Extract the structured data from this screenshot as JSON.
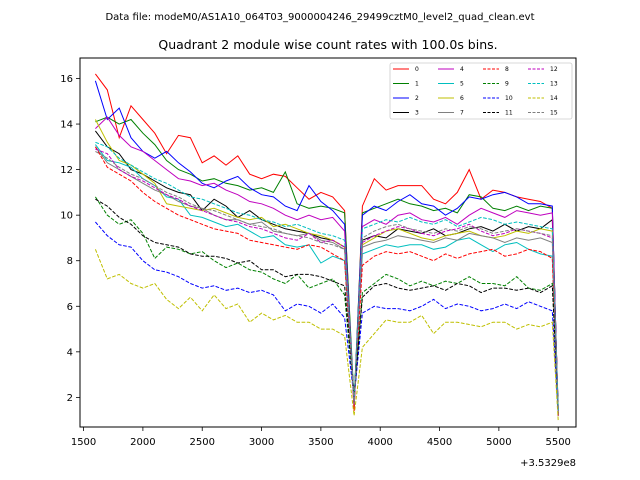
{
  "figure": {
    "suptitle": "Data file: modeM0/AS1A10_064T03_9000004246_29499cztM0_level2_quad_clean.evt",
    "title": "Quadrant 2 module wise count rates with 100.0s bins."
  },
  "chart_data": {
    "type": "line",
    "title": "Quadrant 2 module wise count rates with 100.0s bins.",
    "xlabel": "",
    "ylabel": "",
    "x_offset_label": "+3.5329e8",
    "xlim": [
      1470,
      5650
    ],
    "ylim": [
      0.7,
      16.9
    ],
    "xticks": [
      1500,
      2000,
      2500,
      3000,
      3500,
      4000,
      4500,
      5000,
      5500
    ],
    "xtick_labels": [
      "1500",
      "2000",
      "2500",
      "3000",
      "3500",
      "4000",
      "4500",
      "5000",
      "5500"
    ],
    "yticks": [
      2,
      4,
      6,
      8,
      10,
      12,
      14,
      16
    ],
    "ytick_labels": [
      "2",
      "4",
      "6",
      "8",
      "10",
      "12",
      "14",
      "16"
    ],
    "legend_placement": "top-right",
    "x": [
      1600,
      1700,
      1800,
      1900,
      2000,
      2100,
      2200,
      2300,
      2400,
      2500,
      2600,
      2700,
      2800,
      2900,
      3000,
      3100,
      3200,
      3300,
      3400,
      3500,
      3600,
      3700,
      3780,
      3850,
      3950,
      4050,
      4150,
      4250,
      4350,
      4450,
      4550,
      4650,
      4750,
      4850,
      4950,
      5050,
      5150,
      5250,
      5350,
      5450,
      5500
    ],
    "series": [
      {
        "name": "0",
        "color": "#ff0000",
        "style": "solid",
        "values": [
          16.2,
          15.5,
          13.4,
          14.8,
          14.2,
          13.6,
          12.7,
          13.5,
          13.4,
          12.3,
          12.6,
          12.2,
          12.6,
          11.8,
          11.6,
          11.8,
          11.7,
          11.2,
          10.7,
          11.0,
          10.8,
          10.2,
          1.4,
          10.4,
          11.6,
          11.1,
          11.3,
          11.3,
          11.3,
          10.7,
          10.5,
          11.0,
          12.0,
          10.7,
          11.1,
          11.0,
          10.8,
          10.7,
          10.6,
          10.3,
          1.3
        ]
      },
      {
        "name": "1",
        "color": "#008000",
        "style": "solid",
        "values": [
          14.1,
          14.3,
          14.0,
          14.2,
          13.6,
          13.1,
          12.4,
          12.0,
          11.8,
          11.5,
          11.6,
          11.4,
          11.3,
          11.1,
          11.2,
          11.0,
          11.9,
          10.5,
          10.3,
          10.4,
          10.3,
          10.1,
          1.8,
          10.1,
          10.3,
          10.5,
          10.7,
          10.5,
          10.4,
          10.2,
          10.3,
          10.1,
          10.9,
          10.8,
          10.3,
          10.2,
          10.4,
          10.2,
          10.4,
          10.3,
          1.2
        ]
      },
      {
        "name": "2",
        "color": "#0000ff",
        "style": "solid",
        "values": [
          15.9,
          14.2,
          14.7,
          13.4,
          12.8,
          12.5,
          12.8,
          12.3,
          11.9,
          11.4,
          11.2,
          11.5,
          11.7,
          11.2,
          10.9,
          10.8,
          10.4,
          10.2,
          11.3,
          10.6,
          10.2,
          9.6,
          1.6,
          10.0,
          10.4,
          10.2,
          10.6,
          10.9,
          10.5,
          10.4,
          10.0,
          10.3,
          10.8,
          10.7,
          10.9,
          11.0,
          10.8,
          10.5,
          10.5,
          10.4,
          1.2
        ]
      },
      {
        "name": "3",
        "color": "#000000",
        "style": "solid",
        "values": [
          13.7,
          13.0,
          12.7,
          12.0,
          11.8,
          11.5,
          11.2,
          11.0,
          10.9,
          10.2,
          10.7,
          10.4,
          9.9,
          10.2,
          9.8,
          9.6,
          9.4,
          9.3,
          9.2,
          9.0,
          8.9,
          8.6,
          1.9,
          8.9,
          9.1,
          9.0,
          9.4,
          9.3,
          9.2,
          9.4,
          9.1,
          9.2,
          9.4,
          9.5,
          9.3,
          9.6,
          9.3,
          9.5,
          9.4,
          9.8,
          1.5
        ]
      },
      {
        "name": "4",
        "color": "#bf00bf",
        "style": "solid",
        "values": [
          13.8,
          14.3,
          13.5,
          13.0,
          12.8,
          12.4,
          12.0,
          11.6,
          11.5,
          11.3,
          11.4,
          11.1,
          10.9,
          10.6,
          10.5,
          10.3,
          10.0,
          9.8,
          10.0,
          9.8,
          9.9,
          9.3,
          1.7,
          9.5,
          9.8,
          9.6,
          10.0,
          10.1,
          9.8,
          9.7,
          9.9,
          9.6,
          10.0,
          10.3,
          10.1,
          9.9,
          10.2,
          10.1,
          10.0,
          10.1,
          1.4
        ]
      },
      {
        "name": "5",
        "color": "#00bfbf",
        "style": "solid",
        "values": [
          13.1,
          12.4,
          12.3,
          12.1,
          11.6,
          11.3,
          10.8,
          10.7,
          10.0,
          9.9,
          9.7,
          9.5,
          9.6,
          9.3,
          9.0,
          9.1,
          8.7,
          8.6,
          8.7,
          7.9,
          8.2,
          8.0,
          1.8,
          8.3,
          8.5,
          8.7,
          8.6,
          8.7,
          8.7,
          8.5,
          8.6,
          8.9,
          9.0,
          8.7,
          8.4,
          8.7,
          8.8,
          8.5,
          8.3,
          8.2,
          1.4
        ]
      },
      {
        "name": "6",
        "color": "#bfbf00",
        "style": "solid",
        "values": [
          14.2,
          13.2,
          12.4,
          12.2,
          11.8,
          11.4,
          10.5,
          10.4,
          10.3,
          10.2,
          10.3,
          10.1,
          9.9,
          9.8,
          9.9,
          9.5,
          9.6,
          9.4,
          9.2,
          9.1,
          8.9,
          8.6,
          1.7,
          8.7,
          9.0,
          9.3,
          9.4,
          9.2,
          9.0,
          8.9,
          9.1,
          9.2,
          9.3,
          9.1,
          9.0,
          9.1,
          9.3,
          9.2,
          9.4,
          9.3,
          1.3
        ]
      },
      {
        "name": "7",
        "color": "#808080",
        "style": "solid",
        "values": [
          13.0,
          12.3,
          12.0,
          11.7,
          11.4,
          11.1,
          10.9,
          10.6,
          10.4,
          10.3,
          10.0,
          9.8,
          9.8,
          9.6,
          9.7,
          9.3,
          9.2,
          9.1,
          9.2,
          8.9,
          8.8,
          8.5,
          1.7,
          8.6,
          8.8,
          8.9,
          9.1,
          9.0,
          8.9,
          8.8,
          9.0,
          8.9,
          9.2,
          9.1,
          9.0,
          8.8,
          9.0,
          8.9,
          9.0,
          8.8,
          1.3
        ]
      },
      {
        "name": "8",
        "color": "#ff0000",
        "style": "dashed",
        "values": [
          13.0,
          12.1,
          11.8,
          11.5,
          11.0,
          10.6,
          10.3,
          10.0,
          9.8,
          9.6,
          9.4,
          9.3,
          9.2,
          8.9,
          8.8,
          8.7,
          8.6,
          8.5,
          8.7,
          8.6,
          8.3,
          8.0,
          1.6,
          7.8,
          8.2,
          8.4,
          8.3,
          8.4,
          8.2,
          8.0,
          8.3,
          8.1,
          8.3,
          8.4,
          8.5,
          8.2,
          8.3,
          8.5,
          8.4,
          8.1,
          1.2
        ]
      },
      {
        "name": "9",
        "color": "#008000",
        "style": "dashed",
        "values": [
          10.8,
          10.0,
          9.6,
          9.8,
          9.2,
          8.1,
          8.6,
          8.5,
          8.3,
          8.4,
          8.0,
          7.7,
          7.9,
          7.6,
          7.5,
          7.2,
          7.0,
          7.4,
          6.8,
          7.0,
          7.2,
          6.5,
          1.9,
          6.6,
          7.0,
          7.4,
          7.2,
          6.9,
          7.1,
          6.9,
          7.1,
          7.0,
          7.3,
          7.0,
          7.0,
          6.9,
          7.3,
          6.8,
          6.7,
          7.0,
          1.6
        ]
      },
      {
        "name": "10",
        "color": "#0000ff",
        "style": "dashed",
        "values": [
          9.7,
          9.1,
          8.7,
          8.6,
          8.0,
          7.6,
          7.5,
          7.3,
          7.0,
          6.8,
          6.9,
          6.7,
          6.8,
          6.6,
          6.7,
          6.5,
          5.8,
          6.1,
          6.0,
          5.7,
          6.1,
          5.5,
          2.0,
          5.7,
          6.0,
          5.9,
          5.9,
          5.8,
          6.0,
          6.3,
          5.9,
          6.1,
          6.0,
          5.8,
          5.9,
          6.1,
          5.9,
          6.2,
          6.0,
          5.8,
          1.3
        ]
      },
      {
        "name": "11",
        "color": "#000000",
        "style": "dashed",
        "values": [
          10.7,
          10.4,
          9.9,
          9.6,
          9.1,
          8.8,
          8.7,
          8.6,
          8.3,
          8.2,
          8.2,
          8.1,
          7.9,
          8.0,
          7.6,
          7.6,
          7.3,
          7.4,
          7.4,
          7.3,
          7.1,
          6.9,
          2.1,
          6.4,
          6.9,
          7.0,
          6.8,
          6.7,
          6.8,
          6.9,
          6.7,
          7.0,
          6.9,
          6.6,
          6.8,
          6.8,
          6.7,
          6.8,
          6.6,
          6.9,
          1.7
        ]
      },
      {
        "name": "12",
        "color": "#bf00bf",
        "style": "dashed",
        "values": [
          12.9,
          12.7,
          12.0,
          11.7,
          11.5,
          11.2,
          10.9,
          10.7,
          10.4,
          10.2,
          10.0,
          9.8,
          9.7,
          9.5,
          9.4,
          9.2,
          9.0,
          8.9,
          9.2,
          8.8,
          8.9,
          8.6,
          1.7,
          8.8,
          9.1,
          9.3,
          9.5,
          9.4,
          9.2,
          9.1,
          9.3,
          9.4,
          9.6,
          9.3,
          9.1,
          9.2,
          9.4,
          9.3,
          9.2,
          9.0,
          1.4
        ]
      },
      {
        "name": "13",
        "color": "#00bfbf",
        "style": "dashed",
        "values": [
          13.2,
          13.0,
          12.5,
          12.2,
          11.9,
          11.6,
          11.4,
          11.1,
          10.8,
          10.7,
          10.5,
          10.3,
          10.1,
          10.0,
          9.8,
          9.7,
          9.5,
          9.6,
          9.4,
          9.2,
          9.1,
          8.9,
          1.8,
          9.4,
          9.6,
          9.8,
          9.7,
          9.9,
          9.7,
          9.6,
          9.8,
          9.5,
          9.7,
          9.9,
          9.8,
          9.6,
          9.7,
          9.6,
          9.5,
          9.4,
          1.4
        ]
      },
      {
        "name": "14",
        "color": "#bfbf00",
        "style": "dashed",
        "values": [
          8.5,
          7.2,
          7.4,
          7.0,
          6.8,
          7.0,
          6.3,
          5.9,
          6.4,
          5.8,
          6.5,
          5.9,
          6.1,
          5.3,
          5.7,
          5.4,
          5.6,
          5.3,
          5.3,
          5.0,
          5.0,
          4.7,
          1.2,
          4.2,
          4.8,
          5.4,
          5.3,
          5.3,
          5.6,
          4.8,
          5.3,
          5.3,
          5.2,
          5.1,
          5.3,
          5.3,
          5.0,
          5.2,
          5.1,
          5.3,
          1.0
        ]
      },
      {
        "name": "15",
        "color": "#808080",
        "style": "dashed",
        "values": [
          12.8,
          12.5,
          12.1,
          11.8,
          11.6,
          11.3,
          11.0,
          10.8,
          10.5,
          10.3,
          10.2,
          10.0,
          9.8,
          9.6,
          9.5,
          9.4,
          9.2,
          9.1,
          9.0,
          8.8,
          8.7,
          8.5,
          1.7,
          9.0,
          9.3,
          9.5,
          9.6,
          9.4,
          9.3,
          9.2,
          9.4,
          9.3,
          9.5,
          9.4,
          9.2,
          9.3,
          9.4,
          9.3,
          9.2,
          9.1,
          1.4
        ]
      }
    ]
  }
}
